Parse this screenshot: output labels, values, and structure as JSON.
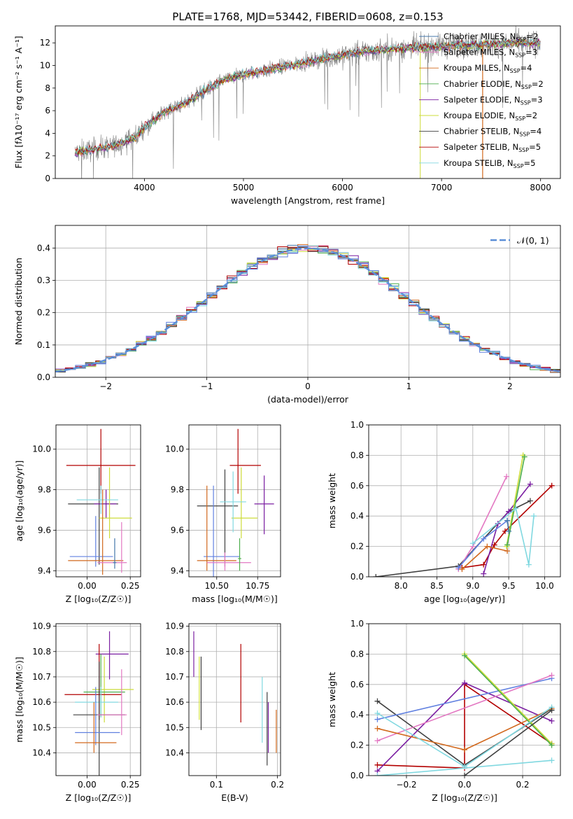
{
  "title": "PLATE=1768, MJD=53442, FIBERID=0608, z=0.153",
  "model_colors": [
    "#4477aa",
    "#e377c2",
    "#d2691e",
    "#4cae4c",
    "#7b1fa2",
    "#cddc39",
    "#404040",
    "#b30000",
    "#80d8e0",
    "#6080e0"
  ],
  "chart_data": [
    {
      "id": "spectrum",
      "type": "line",
      "title": "PLATE=1768, MJD=53442, FIBERID=0608, z=0.153",
      "xlabel": "wavelength [Angstrom, rest frame]",
      "ylabel": "Flux [fλ10⁻¹⁷ erg cm⁻² s⁻¹ A⁻¹]",
      "xlim": [
        3100,
        8200
      ],
      "ylim": [
        0,
        13.5
      ],
      "xticks": [
        4000,
        5000,
        6000,
        7000,
        8000
      ],
      "yticks": [
        0,
        2,
        4,
        6,
        8,
        10,
        12
      ],
      "legend_position": "top-right",
      "data_color": "#808080",
      "continuum": {
        "x": [
          3300,
          3500,
          3700,
          3900,
          4000,
          4200,
          4400,
          4600,
          4800,
          5000,
          5200,
          5400,
          5600,
          5800,
          6000,
          6200,
          6400,
          6600,
          6800,
          7000,
          7200,
          7400,
          7600,
          7800,
          8000
        ],
        "y": [
          2.3,
          2.6,
          2.9,
          3.6,
          4.5,
          5.9,
          6.6,
          7.7,
          8.7,
          9.2,
          9.5,
          9.9,
          10.2,
          10.6,
          10.9,
          11.2,
          11.4,
          11.5,
          11.6,
          11.7,
          11.8,
          11.8,
          11.9,
          12.0,
          12.0
        ]
      },
      "legend": [
        {
          "label": "Chabrier MILES, N",
          "nssp": "=2"
        },
        {
          "label": "Salpeter MILES, N",
          "nssp": "=3"
        },
        {
          "label": "Kroupa MILES, N",
          "nssp": "=4"
        },
        {
          "label": "Chabrier ELODIE, N",
          "nssp": "=2"
        },
        {
          "label": "Salpeter ELODIE, N",
          "nssp": "=3"
        },
        {
          "label": "Kroupa ELODIE, N",
          "nssp": "=2"
        },
        {
          "label": "Chabrier STELIB, N",
          "nssp": "=4"
        },
        {
          "label": "Salpeter STELIB, N",
          "nssp": "=5"
        },
        {
          "label": "Kroupa STELIB, N",
          "nssp": "=5"
        }
      ],
      "legend_subscript": "SSP"
    },
    {
      "id": "residuals",
      "type": "line",
      "xlabel": "(data-model)/error",
      "ylabel": "Normed distribution",
      "xlim": [
        -2.5,
        2.5
      ],
      "ylim": [
        0,
        0.47
      ],
      "xticks": [
        -2,
        -1,
        0,
        1,
        2
      ],
      "yticks": [
        0.0,
        0.1,
        0.2,
        0.3,
        0.4
      ],
      "grid": true,
      "legend_position": "top-right",
      "reference_curve": {
        "label": "𝒩(0, 1)",
        "mean": 0,
        "sigma": 1,
        "color": "#5b8fd8",
        "style": "dashed"
      },
      "histogram_bin_width": 0.1
    },
    {
      "id": "age-vs-Z",
      "type": "scatter",
      "xlabel": "Z [log₁₀(Z/Z☉)]",
      "ylabel": "age  [log₁₀(age/yr)]",
      "xlim": [
        -0.18,
        0.31
      ],
      "ylim": [
        9.37,
        10.12
      ],
      "xticks": [
        0.0,
        0.25
      ],
      "yticks": [
        9.4,
        9.6,
        9.8,
        10.0
      ],
      "grid": true,
      "points": [
        {
          "x": 0.08,
          "y": 9.92,
          "xerr": [
            0.2,
            0.2
          ],
          "yerr": [
            0.14,
            0.18
          ],
          "c": 7
        },
        {
          "x": 0.07,
          "y": 9.73,
          "xerr": [
            0.18,
            0.11
          ],
          "yerr": [
            0.3,
            0.18
          ],
          "c": 6
        },
        {
          "x": 0.11,
          "y": 9.73,
          "xerr": [
            0.07,
            0.06
          ],
          "yerr": [
            0.07,
            0.07
          ],
          "c": 4
        },
        {
          "x": 0.13,
          "y": 9.66,
          "xerr": [
            0.06,
            0.13
          ],
          "yerr": [
            0.1,
            0.25
          ],
          "c": 5
        },
        {
          "x": 0.08,
          "y": 9.75,
          "xerr": [
            0.14,
            0.1
          ],
          "yerr": [
            0.07,
            0.07
          ],
          "c": 8
        },
        {
          "x": 0.05,
          "y": 9.47,
          "xerr": [
            0.15,
            0.1
          ],
          "yerr": [
            0.05,
            0.2
          ],
          "c": 9
        },
        {
          "x": 0.09,
          "y": 9.45,
          "xerr": [
            0.2,
            0.12
          ],
          "yerr": [
            0.07,
            0.35
          ],
          "c": 2
        },
        {
          "x": 0.2,
          "y": 9.44,
          "xerr": [
            0.14,
            0.03
          ],
          "yerr": [
            0.05,
            0.2
          ],
          "c": 1
        },
        {
          "x": 0.16,
          "y": 9.44,
          "xerr": [
            0.01,
            0.01
          ],
          "yerr": [
            0.03,
            0.12
          ],
          "c": 0
        }
      ]
    },
    {
      "id": "age-vs-mass",
      "type": "scatter",
      "xlabel": "mass [log₁₀(M/M☉)]",
      "ylabel": "",
      "xlim": [
        10.33,
        10.89
      ],
      "ylim": [
        9.37,
        10.12
      ],
      "xticks": [
        10.5,
        10.75
      ],
      "yticks": [
        9.4,
        9.6,
        9.8,
        10.0
      ],
      "grid": true,
      "points": [
        {
          "x": 10.63,
          "y": 9.92,
          "xerr": [
            0.05,
            0.14
          ],
          "yerr": [
            0.14,
            0.18
          ],
          "c": 7
        },
        {
          "x": 10.55,
          "y": 9.72,
          "xerr": [
            0.17,
            0.08
          ],
          "yerr": [
            0.3,
            0.18
          ],
          "c": 6
        },
        {
          "x": 10.79,
          "y": 9.73,
          "xerr": [
            0.06,
            0.06
          ],
          "yerr": [
            0.15,
            0.14
          ],
          "c": 4
        },
        {
          "x": 10.65,
          "y": 9.66,
          "xerr": [
            0.06,
            0.1
          ],
          "yerr": [
            0.1,
            0.25
          ],
          "c": 5
        },
        {
          "x": 10.6,
          "y": 9.74,
          "xerr": [
            0.08,
            0.08
          ],
          "yerr": [
            0.15,
            0.15
          ],
          "c": 8
        },
        {
          "x": 10.48,
          "y": 9.47,
          "xerr": [
            0.06,
            0.16
          ],
          "yerr": [
            0.15,
            0.35
          ],
          "c": 9
        },
        {
          "x": 10.44,
          "y": 9.45,
          "xerr": [
            0.06,
            0.18
          ],
          "yerr": [
            0.05,
            0.37
          ],
          "c": 2
        },
        {
          "x": 10.55,
          "y": 9.44,
          "xerr": [
            0.11,
            0.16
          ],
          "yerr": [
            0.04,
            0.05
          ],
          "c": 1
        },
        {
          "x": 10.64,
          "y": 9.46,
          "xerr": [
            0.01,
            0.01
          ],
          "yerr": [
            0.06,
            0.1
          ],
          "c": 3
        }
      ]
    },
    {
      "id": "weight-vs-age",
      "type": "line",
      "xlabel": "age  [log₁₀(age/yr)]",
      "ylabel": "mass weight",
      "xlim": [
        7.55,
        10.22
      ],
      "ylim": [
        0,
        1.0
      ],
      "xticks": [
        8.0,
        8.5,
        9.0,
        9.5,
        10.0
      ],
      "yticks": [
        0.0,
        0.2,
        0.4,
        0.6,
        0.8,
        1.0
      ],
      "grid": true,
      "series": [
        {
          "c": 6,
          "x": [
            7.65,
            8.8,
            9.5,
            9.8
          ],
          "y": [
            0.0,
            0.07,
            0.43,
            0.5
          ]
        },
        {
          "c": 7,
          "x": [
            8.85,
            9.15,
            9.3,
            9.45,
            10.1
          ],
          "y": [
            0.06,
            0.08,
            0.21,
            0.3,
            0.6
          ]
        },
        {
          "c": 4,
          "x": [
            9.15,
            9.35,
            9.5,
            9.8
          ],
          "y": [
            0.02,
            0.35,
            0.43,
            0.61
          ]
        },
        {
          "c": 1,
          "x": [
            8.8,
            9.0,
            9.47
          ],
          "y": [
            0.05,
            0.2,
            0.66
          ]
        },
        {
          "c": 2,
          "x": [
            8.85,
            9.2,
            9.48
          ],
          "y": [
            0.05,
            0.2,
            0.17
          ]
        },
        {
          "c": 5,
          "x": [
            9.47,
            9.7
          ],
          "y": [
            0.2,
            0.8
          ]
        },
        {
          "c": 3,
          "x": [
            9.48,
            9.72
          ],
          "y": [
            0.21,
            0.79
          ]
        },
        {
          "c": 9,
          "x": [
            8.8,
            9.15,
            9.48
          ],
          "y": [
            0.06,
            0.25,
            0.37
          ]
        },
        {
          "c": 8,
          "x": [
            9.0,
            9.6,
            9.78,
            9.85
          ],
          "y": [
            0.22,
            0.45,
            0.08,
            0.4
          ]
        },
        {
          "c": 0,
          "x": [
            9.48,
            9.5
          ],
          "y": [
            0.37,
            0.3
          ]
        }
      ]
    },
    {
      "id": "mass-vs-Z",
      "type": "scatter",
      "xlabel": "Z [log₁₀(Z/Z☉)]",
      "ylabel": "mass [log₁₀(M/M☉)]",
      "xlim": [
        -0.18,
        0.31
      ],
      "ylim": [
        10.31,
        10.91
      ],
      "xticks": [
        0.0,
        0.25
      ],
      "yticks": [
        10.4,
        10.5,
        10.6,
        10.7,
        10.8,
        10.9
      ],
      "grid": true,
      "points": [
        {
          "x": 0.13,
          "y": 10.79,
          "xerr": [
            0.08,
            0.11
          ],
          "yerr": [
            0.1,
            0.09
          ],
          "c": 4
        },
        {
          "x": 0.1,
          "y": 10.65,
          "xerr": [
            0.07,
            0.17
          ],
          "yerr": [
            0.13,
            0.13
          ],
          "c": 5
        },
        {
          "x": 0.08,
          "y": 10.64,
          "xerr": [
            0.1,
            0.14
          ],
          "yerr": [
            0.1,
            0.15
          ],
          "c": 3
        },
        {
          "x": 0.07,
          "y": 10.63,
          "xerr": [
            0.2,
            0.13
          ],
          "yerr": [
            0.1,
            0.2
          ],
          "c": 7
        },
        {
          "x": 0.08,
          "y": 10.6,
          "xerr": [
            0.15,
            0.1
          ],
          "yerr": [
            0.06,
            0.06
          ],
          "c": 8
        },
        {
          "x": 0.07,
          "y": 10.55,
          "xerr": [
            0.15,
            0.15
          ],
          "yerr": [
            0.27,
            0.21
          ],
          "c": 6
        },
        {
          "x": 0.05,
          "y": 10.48,
          "xerr": [
            0.12,
            0.14
          ],
          "yerr": [
            0.05,
            0.18
          ],
          "c": 9
        },
        {
          "x": 0.04,
          "y": 10.44,
          "xerr": [
            0.11,
            0.13
          ],
          "yerr": [
            0.04,
            0.16
          ],
          "c": 2
        },
        {
          "x": 0.2,
          "y": 10.55,
          "xerr": [
            0.14,
            0.03
          ],
          "yerr": [
            0.08,
            0.18
          ],
          "c": 1
        }
      ]
    },
    {
      "id": "mass-vs-EBV",
      "type": "scatter",
      "xlabel": "E(B-V)",
      "ylabel": "",
      "xlim": [
        0.055,
        0.205
      ],
      "ylim": [
        10.31,
        10.91
      ],
      "xticks": [
        0.1,
        0.2
      ],
      "yticks": [
        10.4,
        10.5,
        10.6,
        10.7,
        10.8,
        10.9
      ],
      "grid": true,
      "points": [
        {
          "x": 0.063,
          "y": 10.79,
          "xerr": [
            0,
            0
          ],
          "yerr": [
            0.09,
            0.09
          ],
          "c": 4
        },
        {
          "x": 0.072,
          "y": 10.65,
          "xerr": [
            0,
            0
          ],
          "yerr": [
            0.12,
            0.13
          ],
          "c": 5
        },
        {
          "x": 0.075,
          "y": 10.64,
          "xerr": [
            0,
            0
          ],
          "yerr": [
            0.15,
            0.14
          ],
          "c": 6
        },
        {
          "x": 0.14,
          "y": 10.67,
          "xerr": [
            0,
            0
          ],
          "yerr": [
            0.15,
            0.16
          ],
          "c": 7
        },
        {
          "x": 0.175,
          "y": 10.57,
          "xerr": [
            0,
            0
          ],
          "yerr": [
            0.13,
            0.13
          ],
          "c": 8
        },
        {
          "x": 0.183,
          "y": 10.55,
          "xerr": [
            0,
            0
          ],
          "yerr": [
            0.2,
            0.09
          ],
          "c": 6
        },
        {
          "x": 0.185,
          "y": 10.5,
          "xerr": [
            0,
            0
          ],
          "yerr": [
            0.1,
            0.1
          ],
          "c": 4
        },
        {
          "x": 0.198,
          "y": 10.49,
          "xerr": [
            0,
            0
          ],
          "yerr": [
            0.09,
            0.08
          ],
          "c": 2
        }
      ]
    },
    {
      "id": "weight-vs-Z",
      "type": "line",
      "xlabel": "Z [log₁₀(Z/Z☉)]",
      "ylabel": "mass weight",
      "xlim": [
        -0.33,
        0.33
      ],
      "ylim": [
        0,
        1.0
      ],
      "xticks": [
        -0.2,
        0.0,
        0.2
      ],
      "yticks": [
        0.0,
        0.2,
        0.4,
        0.6,
        0.8,
        1.0
      ],
      "grid": true,
      "series": [
        {
          "c": 6,
          "x": [
            -0.3,
            0.0,
            0.3
          ],
          "y": [
            0.49,
            0.07,
            0.44
          ]
        },
        {
          "c": 7,
          "x": [
            -0.3,
            0.0,
            0.0,
            0.3
          ],
          "y": [
            0.07,
            0.05,
            0.6,
            0.21
          ]
        },
        {
          "c": 4,
          "x": [
            -0.3,
            0.0,
            0.3
          ],
          "y": [
            0.03,
            0.61,
            0.36
          ]
        },
        {
          "c": 9,
          "x": [
            -0.3,
            0.3
          ],
          "y": [
            0.37,
            0.64
          ]
        },
        {
          "c": 1,
          "x": [
            -0.3,
            0.3
          ],
          "y": [
            0.23,
            0.66
          ]
        },
        {
          "c": 2,
          "x": [
            -0.3,
            0.0,
            0.3
          ],
          "y": [
            0.31,
            0.17,
            0.44
          ]
        },
        {
          "c": 5,
          "x": [
            0.0,
            0.3
          ],
          "y": [
            0.8,
            0.21
          ]
        },
        {
          "c": 3,
          "x": [
            0.0,
            0.3
          ],
          "y": [
            0.79,
            0.2
          ]
        },
        {
          "c": 8,
          "x": [
            -0.3,
            0.0,
            0.3
          ],
          "y": [
            0.41,
            0.06,
            0.45
          ]
        },
        {
          "c": 8,
          "x": [
            -0.3,
            0.3
          ],
          "y": [
            0.0,
            0.1
          ]
        },
        {
          "c": 6,
          "x": [
            0.0,
            0.3
          ],
          "y": [
            0.0,
            0.43
          ]
        }
      ]
    }
  ]
}
